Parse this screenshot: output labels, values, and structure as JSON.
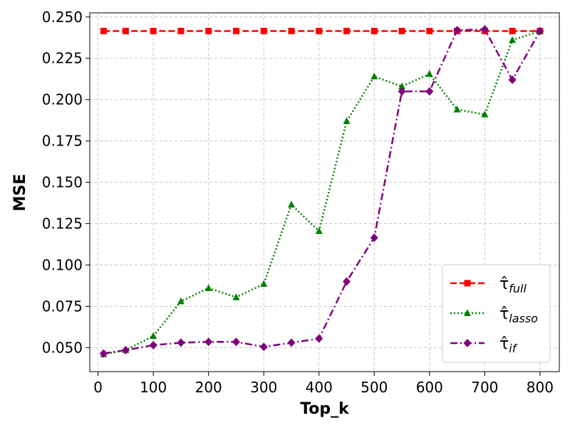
{
  "chart_data": {
    "type": "line",
    "xlabel": "Top_k",
    "ylabel": "MSE",
    "xlim": [
      -15,
      835
    ],
    "ylim": [
      0.0355,
      0.2525
    ],
    "xticks": [
      0,
      100,
      200,
      300,
      400,
      500,
      600,
      700,
      800
    ],
    "yticks": [
      0.05,
      0.075,
      0.1,
      0.125,
      0.15,
      0.175,
      0.2,
      0.225,
      0.25
    ],
    "ytick_format": 3,
    "grid": true,
    "legend_position": "lower-right",
    "x": [
      10,
      50,
      100,
      150,
      200,
      250,
      300,
      350,
      400,
      450,
      500,
      550,
      600,
      650,
      700,
      750,
      800
    ],
    "series": [
      {
        "name": "τ̂_full",
        "name_base": "τ̂",
        "name_sub": "full",
        "color": "#ff0000",
        "marker": "square",
        "linestyle": "dashed",
        "values": [
          0.2415,
          0.2415,
          0.2415,
          0.2415,
          0.2415,
          0.2415,
          0.2415,
          0.2415,
          0.2415,
          0.2415,
          0.2415,
          0.2415,
          0.2415,
          0.2415,
          0.2415,
          0.2415,
          0.2415
        ]
      },
      {
        "name": "τ̂_lasso",
        "name_base": "τ̂",
        "name_sub": "lasso",
        "color": "#008000",
        "marker": "triangle",
        "linestyle": "dotted",
        "values": [
          0.046,
          0.0485,
          0.057,
          0.078,
          0.086,
          0.0805,
          0.0885,
          0.1365,
          0.1205,
          0.187,
          0.214,
          0.208,
          0.2155,
          0.194,
          0.191,
          0.236,
          0.2415
        ]
      },
      {
        "name": "τ̂_if",
        "name_base": "τ̂",
        "name_sub": "if",
        "color": "#800080",
        "marker": "diamond",
        "linestyle": "dashdot",
        "values": [
          0.0465,
          0.0485,
          0.0515,
          0.053,
          0.0535,
          0.0535,
          0.0505,
          0.053,
          0.0555,
          0.09,
          0.1165,
          0.205,
          0.205,
          0.242,
          0.2425,
          0.212,
          0.2415
        ]
      }
    ]
  }
}
